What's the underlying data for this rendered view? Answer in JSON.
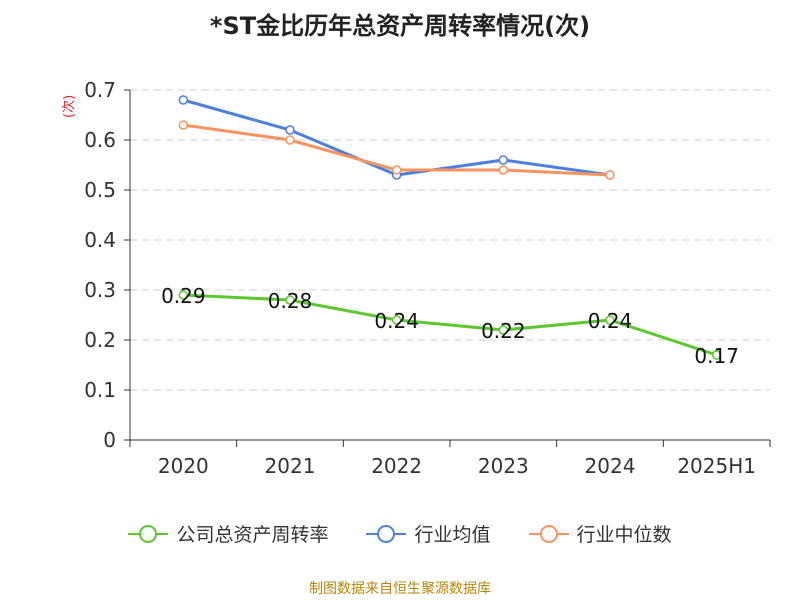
{
  "chart_data": {
    "type": "line",
    "title": "*ST金比历年总资产周转率情况(次)",
    "ylabel": "(次)",
    "xlabel": "",
    "categories": [
      "2020",
      "2021",
      "2022",
      "2023",
      "2024",
      "2025H1"
    ],
    "ylim": [
      0,
      0.7
    ],
    "yticks": [
      "0",
      "0.1",
      "0.2",
      "0.3",
      "0.4",
      "0.5",
      "0.6",
      "0.7"
    ],
    "grid": true,
    "legend_position": "bottom",
    "series": [
      {
        "name": "公司总资产周转率",
        "color": "#5cc72e",
        "values": [
          0.29,
          0.28,
          0.24,
          0.22,
          0.24,
          0.17
        ],
        "labels": [
          "0.29",
          "0.28",
          "0.24",
          "0.22",
          "0.24",
          "0.17"
        ]
      },
      {
        "name": "行业均值",
        "color": "#4c7fe0",
        "values": [
          0.68,
          0.62,
          0.53,
          0.56,
          0.53,
          null
        ]
      },
      {
        "name": "行业中位数",
        "color": "#f7935e",
        "values": [
          0.63,
          0.6,
          0.54,
          0.54,
          0.53,
          null
        ]
      }
    ]
  },
  "source": "制图数据来自恒生聚源数据库"
}
